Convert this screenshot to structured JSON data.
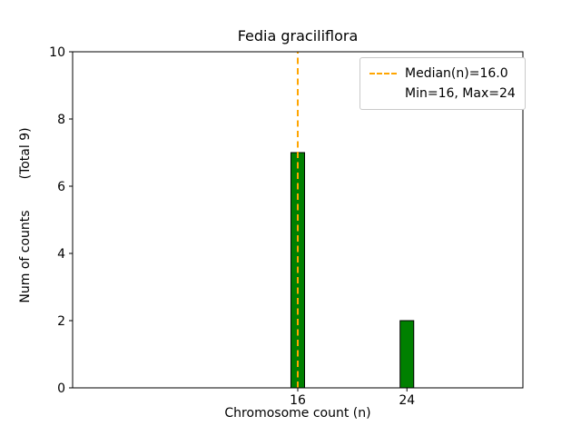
{
  "chart_data": {
    "type": "bar",
    "title": "Fedia graciliflora",
    "xlabel": "Chromosome count (n)",
    "ylabel": "Num of counts",
    "ylabel_note": "(Total 9)",
    "categories": [
      16,
      24
    ],
    "values": [
      7,
      2
    ],
    "total_counts": 9,
    "bar_color": "#008000",
    "bar_edge_color": "#000000",
    "bar_width": 1,
    "xlim": [
      -0.5,
      32.5
    ],
    "ylim": [
      0,
      10
    ],
    "xticks": [
      16,
      24
    ],
    "yticks": [
      0,
      2,
      4,
      6,
      8,
      10
    ],
    "grid": false,
    "median_line": {
      "x": 16,
      "value": 16.0,
      "color": "#FFA500",
      "style": "dashed",
      "label": "Median(n)=16.0"
    },
    "legend": {
      "position": "top-right",
      "entries": [
        {
          "type": "line",
          "style": "dashed",
          "color": "#FFA500",
          "label": "Median(n)=16.0"
        },
        {
          "type": "text",
          "label": "Min=16, Max=24"
        }
      ]
    }
  }
}
